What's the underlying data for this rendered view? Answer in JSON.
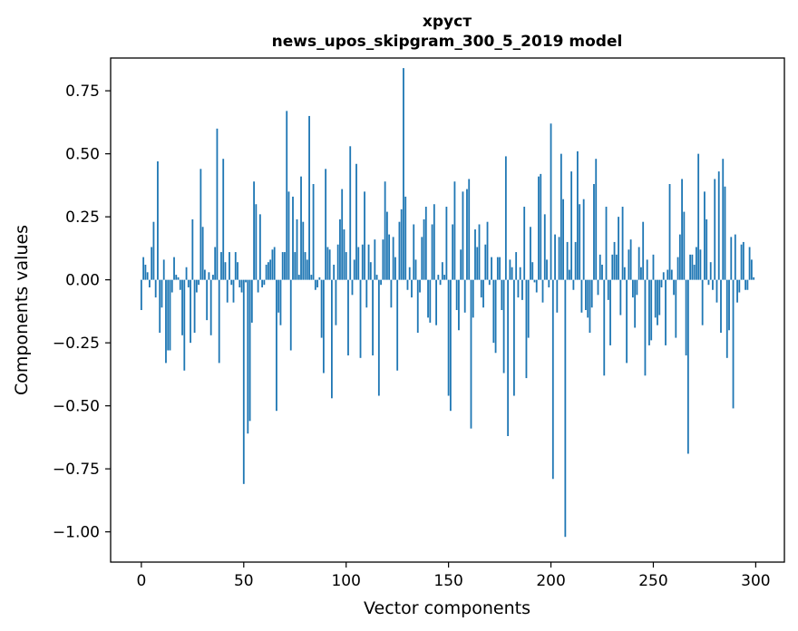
{
  "chart_data": {
    "type": "bar",
    "title": "хруст",
    "subtitle": "news_upos_skipgram_300_5_2019 model",
    "xlabel": "Vector components",
    "ylabel": "Components values",
    "xlim": [
      -15,
      314
    ],
    "ylim": [
      -1.12,
      0.88
    ],
    "xticks": [
      0,
      50,
      100,
      150,
      200,
      250,
      300
    ],
    "yticks": [
      -1.0,
      -0.75,
      -0.5,
      -0.25,
      0.0,
      0.25,
      0.5,
      0.75
    ],
    "xtick_labels": [
      "0",
      "50",
      "100",
      "150",
      "200",
      "250",
      "300"
    ],
    "ytick_labels": [
      "−1.00",
      "−0.75",
      "−0.50",
      "−0.25",
      "0.00",
      "0.25",
      "0.50",
      "0.75"
    ],
    "grid": false,
    "bar_color": "#1f77b4",
    "x": [
      0,
      1,
      2,
      3,
      4,
      5,
      6,
      7,
      8,
      9,
      10,
      11,
      12,
      13,
      14,
      15,
      16,
      17,
      18,
      19,
      20,
      21,
      22,
      23,
      24,
      25,
      26,
      27,
      28,
      29,
      30,
      31,
      32,
      33,
      34,
      35,
      36,
      37,
      38,
      39,
      40,
      41,
      42,
      43,
      44,
      45,
      46,
      47,
      48,
      49,
      50,
      51,
      52,
      53,
      54,
      55,
      56,
      57,
      58,
      59,
      60,
      61,
      62,
      63,
      64,
      65,
      66,
      67,
      68,
      69,
      70,
      71,
      72,
      73,
      74,
      75,
      76,
      77,
      78,
      79,
      80,
      81,
      82,
      83,
      84,
      85,
      86,
      87,
      88,
      89,
      90,
      91,
      92,
      93,
      94,
      95,
      96,
      97,
      98,
      99,
      100,
      101,
      102,
      103,
      104,
      105,
      106,
      107,
      108,
      109,
      110,
      111,
      112,
      113,
      114,
      115,
      116,
      117,
      118,
      119,
      120,
      121,
      122,
      123,
      124,
      125,
      126,
      127,
      128,
      129,
      130,
      131,
      132,
      133,
      134,
      135,
      136,
      137,
      138,
      139,
      140,
      141,
      142,
      143,
      144,
      145,
      146,
      147,
      148,
      149,
      150,
      151,
      152,
      153,
      154,
      155,
      156,
      157,
      158,
      159,
      160,
      161,
      162,
      163,
      164,
      165,
      166,
      167,
      168,
      169,
      170,
      171,
      172,
      173,
      174,
      175,
      176,
      177,
      178,
      179,
      180,
      181,
      182,
      183,
      184,
      185,
      186,
      187,
      188,
      189,
      190,
      191,
      192,
      193,
      194,
      195,
      196,
      197,
      198,
      199,
      200,
      201,
      202,
      203,
      204,
      205,
      206,
      207,
      208,
      209,
      210,
      211,
      212,
      213,
      214,
      215,
      216,
      217,
      218,
      219,
      220,
      221,
      222,
      223,
      224,
      225,
      226,
      227,
      228,
      229,
      230,
      231,
      232,
      233,
      234,
      235,
      236,
      237,
      238,
      239,
      240,
      241,
      242,
      243,
      244,
      245,
      246,
      247,
      248,
      249,
      250,
      251,
      252,
      253,
      254,
      255,
      256,
      257,
      258,
      259,
      260,
      261,
      262,
      263,
      264,
      265,
      266,
      267,
      268,
      269,
      270,
      271,
      272,
      273,
      274,
      275,
      276,
      277,
      278,
      279,
      280,
      281,
      282,
      283,
      284,
      285,
      286,
      287,
      288,
      289,
      290,
      291,
      292,
      293,
      294,
      295,
      296,
      297,
      298,
      299
    ],
    "values": [
      -0.12,
      0.09,
      0.06,
      0.03,
      -0.03,
      0.13,
      0.23,
      -0.07,
      0.47,
      -0.21,
      -0.11,
      0.08,
      -0.33,
      -0.28,
      -0.28,
      -0.05,
      0.09,
      0.02,
      0.01,
      -0.04,
      -0.22,
      -0.36,
      0.05,
      -0.03,
      -0.25,
      0.24,
      -0.21,
      -0.05,
      -0.02,
      0.44,
      0.21,
      0.04,
      -0.16,
      0.03,
      -0.22,
      0.02,
      0.13,
      0.6,
      -0.33,
      0.11,
      0.48,
      0.07,
      -0.09,
      0.11,
      -0.02,
      -0.09,
      0.11,
      0.07,
      -0.03,
      -0.05,
      -0.81,
      -0.01,
      -0.61,
      -0.56,
      -0.17,
      0.39,
      0.3,
      -0.05,
      0.26,
      -0.03,
      -0.02,
      0.06,
      0.07,
      0.08,
      0.12,
      0.13,
      -0.52,
      -0.13,
      -0.18,
      0.11,
      0.11,
      0.67,
      0.35,
      -0.28,
      0.33,
      0.11,
      0.24,
      0.02,
      0.41,
      0.23,
      0.11,
      0.08,
      0.65,
      0.02,
      0.38,
      -0.04,
      -0.03,
      0.01,
      -0.23,
      -0.37,
      0.44,
      0.13,
      0.12,
      -0.47,
      0.06,
      -0.18,
      0.14,
      0.24,
      0.36,
      0.2,
      0.11,
      -0.3,
      0.53,
      -0.06,
      0.08,
      0.46,
      0.13,
      -0.31,
      0.14,
      0.35,
      -0.11,
      0.14,
      0.07,
      -0.3,
      0.16,
      0.02,
      -0.46,
      -0.02,
      0.16,
      0.39,
      0.27,
      0.18,
      -0.11,
      0.17,
      0.09,
      -0.36,
      0.23,
      0.28,
      0.84,
      0.33,
      -0.04,
      0.05,
      -0.07,
      0.22,
      0.08,
      -0.21,
      -0.05,
      0.17,
      0.24,
      0.29,
      -0.15,
      -0.17,
      0.22,
      0.3,
      -0.18,
      0.02,
      -0.02,
      0.07,
      0.02,
      0.29,
      -0.46,
      -0.52,
      0.22,
      0.39,
      -0.12,
      -0.2,
      0.12,
      0.35,
      -0.13,
      0.36,
      0.4,
      -0.59,
      -0.15,
      0.2,
      0.13,
      0.22,
      -0.07,
      -0.11,
      0.14,
      0.23,
      -0.02,
      0.09,
      -0.25,
      -0.29,
      0.09,
      0.09,
      -0.12,
      -0.37,
      0.49,
      -0.62,
      0.08,
      0.05,
      -0.46,
      0.11,
      -0.07,
      0.05,
      -0.08,
      0.29,
      -0.39,
      -0.23,
      0.21,
      0.07,
      -0.01,
      -0.05,
      0.41,
      0.42,
      -0.09,
      0.26,
      0.08,
      -0.03,
      0.62,
      -0.79,
      0.18,
      -0.13,
      0.17,
      0.5,
      0.32,
      -1.02,
      0.15,
      0.04,
      0.43,
      -0.04,
      0.15,
      0.51,
      0.3,
      -0.13,
      0.32,
      -0.12,
      -0.15,
      -0.21,
      -0.11,
      0.38,
      0.48,
      -0.06,
      0.1,
      0.06,
      -0.38,
      0.29,
      -0.08,
      -0.26,
      0.1,
      0.15,
      0.1,
      0.25,
      -0.14,
      0.29,
      0.05,
      -0.33,
      0.12,
      0.16,
      -0.07,
      -0.19,
      -0.06,
      0.13,
      0.05,
      0.23,
      -0.38,
      0.08,
      -0.26,
      -0.24,
      0.1,
      -0.15,
      -0.18,
      -0.14,
      -0.03,
      0.03,
      -0.26,
      0.04,
      0.38,
      0.04,
      -0.06,
      -0.23,
      0.09,
      0.18,
      0.4,
      0.27,
      -0.3,
      -0.69,
      0.1,
      0.1,
      0.06,
      0.13,
      0.5,
      0.12,
      -0.18,
      0.35,
      0.24,
      -0.02,
      0.07,
      -0.04,
      0.4,
      -0.09,
      0.43,
      -0.21,
      0.48,
      0.37,
      -0.31,
      -0.2,
      0.17,
      -0.51,
      0.18,
      -0.09,
      -0.05,
      0.14,
      0.15,
      -0.04,
      -0.04,
      0.13,
      0.08,
      0.01
    ]
  }
}
